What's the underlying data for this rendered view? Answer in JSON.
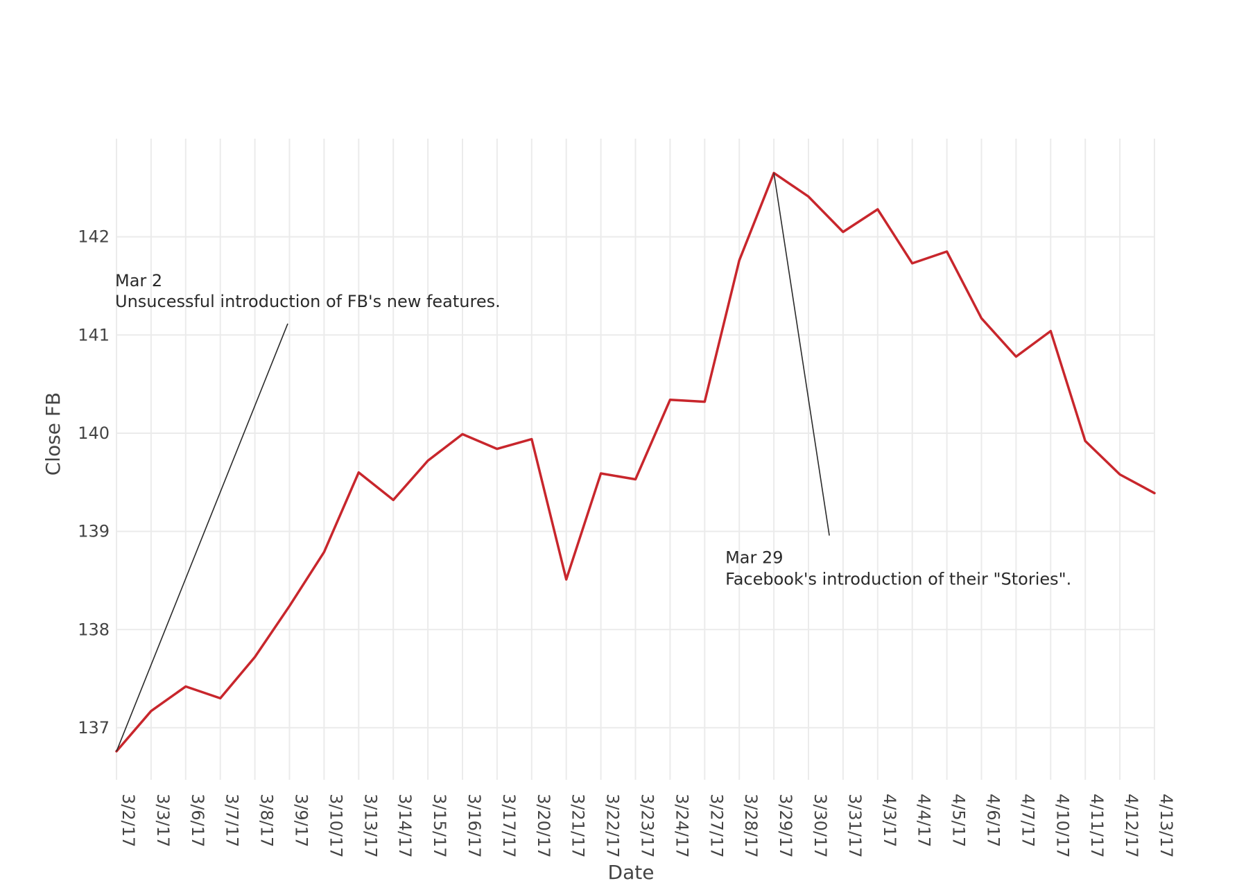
{
  "chart_data": {
    "type": "line",
    "xlabel": "Date",
    "ylabel": "Close FB",
    "ylim": [
      136.47,
      143.0
    ],
    "y_ticks": [
      137,
      138,
      139,
      140,
      141,
      142
    ],
    "grid": true,
    "line_color": "#c8262c",
    "categories": [
      "3/2/17",
      "3/3/17",
      "3/6/17",
      "3/7/17",
      "3/8/17",
      "3/9/17",
      "3/10/17",
      "3/13/17",
      "3/14/17",
      "3/15/17",
      "3/16/17",
      "3/17/17",
      "3/20/17",
      "3/21/17",
      "3/22/17",
      "3/23/17",
      "3/24/17",
      "3/27/17",
      "3/28/17",
      "3/29/17",
      "3/30/17",
      "3/31/17",
      "4/3/17",
      "4/4/17",
      "4/5/17",
      "4/6/17",
      "4/7/17",
      "4/10/17",
      "4/11/17",
      "4/12/17",
      "4/13/17"
    ],
    "series": [
      {
        "values": [
          136.76,
          137.17,
          137.42,
          137.3,
          137.72,
          138.24,
          138.79,
          139.6,
          139.32,
          139.72,
          139.99,
          139.84,
          139.94,
          138.51,
          139.59,
          139.53,
          140.34,
          140.32,
          141.76,
          142.65,
          142.41,
          142.05,
          142.28,
          141.73,
          141.85,
          141.17,
          140.78,
          141.04,
          139.92,
          139.58,
          139.39
        ]
      }
    ],
    "annotations": [
      {
        "target_category": "3/2/17",
        "target_value": 136.76,
        "title": "Mar 2",
        "text": "Unsucessful introduction of FB's new features."
      },
      {
        "target_category": "3/29/17",
        "target_value": 142.65,
        "title": "Mar 29",
        "text": "Facebook's introduction of their \"Stories\"."
      }
    ]
  }
}
